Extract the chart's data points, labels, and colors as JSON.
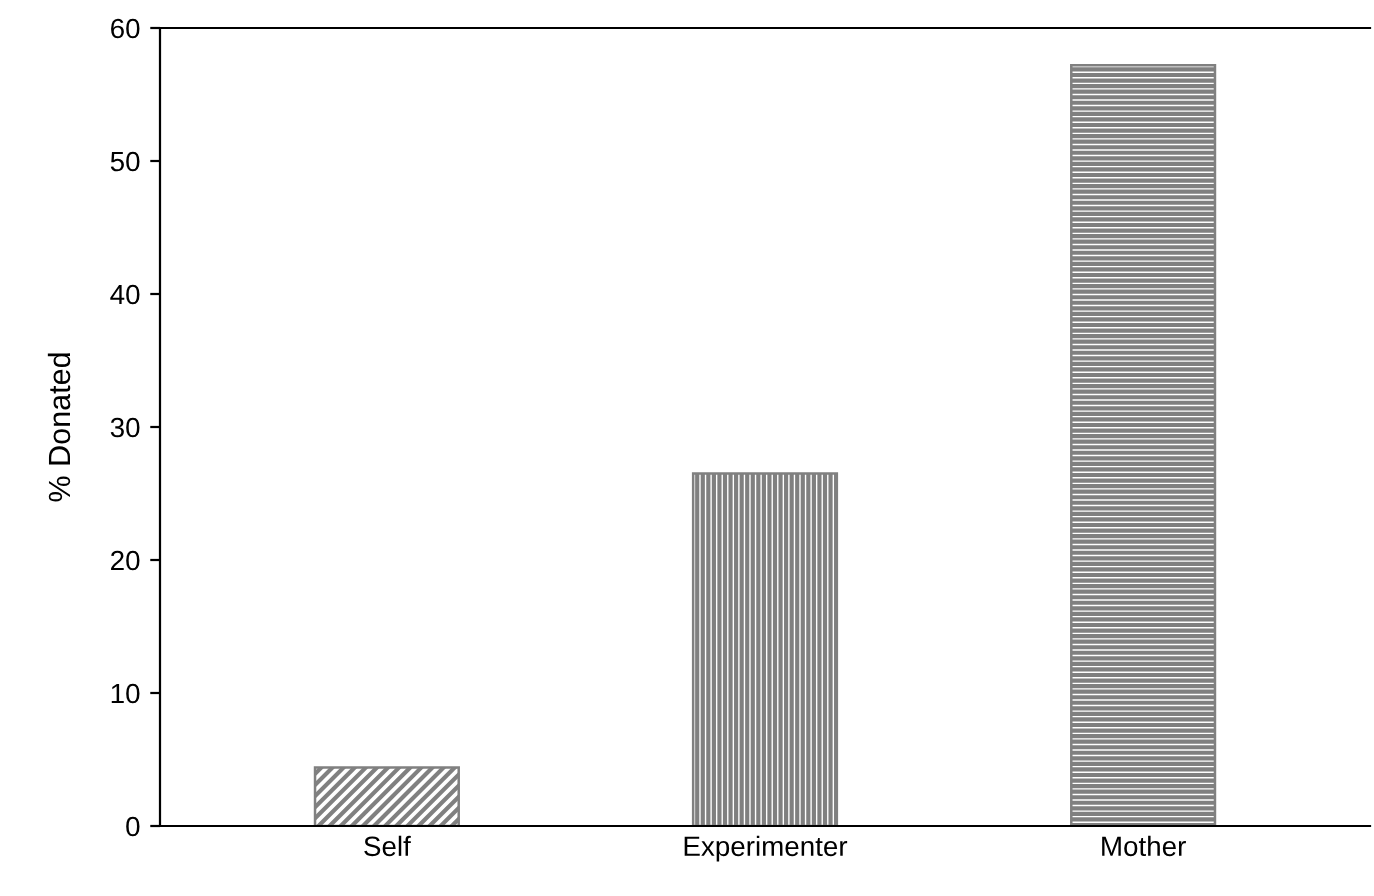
{
  "chart_data": {
    "type": "bar",
    "ylabel": "% Donated",
    "categories": [
      "Self",
      "Experimenter",
      "Mother"
    ],
    "values": [
      4.4,
      26.5,
      57.2
    ],
    "colors": [
      "#808080",
      "#808080",
      "#808080"
    ],
    "ylim": [
      0,
      60
    ],
    "yticks": [
      0,
      10,
      20,
      30,
      40,
      50,
      60
    ],
    "grid": false,
    "legend": false
  }
}
